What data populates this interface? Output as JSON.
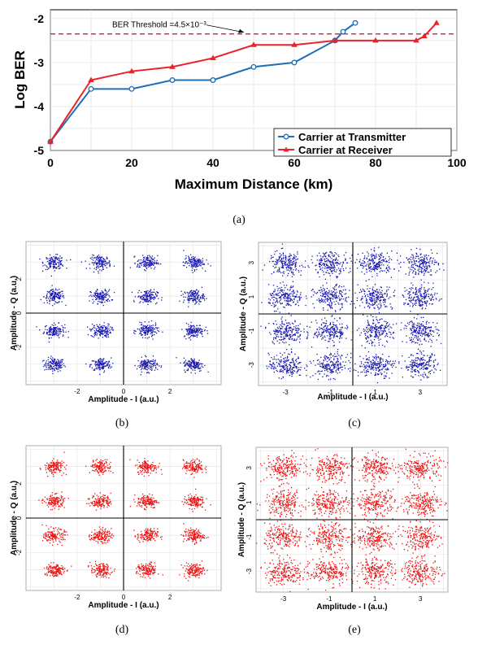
{
  "colors": {
    "transmitter": "#1f6fb5",
    "receiver": "#e8242a",
    "constellation_blue": "#1a1ab0",
    "constellation_red": "#ee1111"
  },
  "chart_data": [
    {
      "type": "line",
      "panel": "(a)",
      "xlabel": "Maximum Distance (km)",
      "ylabel": "Log BER",
      "xlim": [
        0,
        100
      ],
      "ylim": [
        -5,
        -1.8
      ],
      "xticks": [
        "0",
        "20",
        "40",
        "60",
        "80",
        "100"
      ],
      "yticks": [
        "-2",
        "-3",
        "-4",
        "-5"
      ],
      "threshold": {
        "value": -2.35,
        "label": "BER Threshold =4.5×10⁻³"
      },
      "legend_position": "bottom-right",
      "series": [
        {
          "name": "Carrier at Transmitter",
          "color": "#1f6fb5",
          "marker": "circle",
          "x": [
            0,
            10,
            20,
            30,
            40,
            50,
            60,
            70,
            72,
            75
          ],
          "y": [
            -4.8,
            -3.6,
            -3.6,
            -3.4,
            -3.4,
            -3.1,
            -3.0,
            -2.5,
            -2.3,
            -2.1
          ]
        },
        {
          "name": "Carrier at Receiver",
          "color": "#e8242a",
          "marker": "triangle",
          "x": [
            0,
            10,
            20,
            30,
            40,
            50,
            60,
            70,
            80,
            90,
            92,
            95
          ],
          "y": [
            -4.8,
            -3.4,
            -3.2,
            -3.1,
            -2.9,
            -2.6,
            -2.6,
            -2.5,
            -2.5,
            -2.5,
            -2.4,
            -2.1
          ]
        }
      ]
    },
    {
      "type": "scatter",
      "panel": "(b)",
      "modulation_grid": 4,
      "xlabel": "Amplitude - I (a.u.)",
      "ylabel": "Amplitude - Q (a.u.)",
      "xticks": [
        "-2",
        "0",
        "2"
      ],
      "yticks": [
        "2",
        "0",
        "-2"
      ],
      "centers": [
        -3,
        -1,
        1,
        3
      ],
      "noise": 0.22,
      "color": "#1a1ab0"
    },
    {
      "type": "scatter",
      "panel": "(c)",
      "modulation_grid": 4,
      "xlabel": "Amplitude - I (a.u.)",
      "ylabel": "Amplitude - Q (a.u.)",
      "xticks": [
        "-3",
        "-1",
        "1",
        "3"
      ],
      "yticks": [
        "3",
        "1",
        "-1",
        "-3"
      ],
      "centers": [
        -3,
        -1,
        1,
        3
      ],
      "noise": 0.38,
      "color": "#1a1ab0"
    },
    {
      "type": "scatter",
      "panel": "(d)",
      "modulation_grid": 4,
      "xlabel": "Amplitude - I (a.u.)",
      "ylabel": "Amplitude - Q (a.u.)",
      "xticks": [
        "-2",
        "0",
        "2"
      ],
      "yticks": [
        "2",
        "0",
        "-2"
      ],
      "centers": [
        -3,
        -1,
        1,
        3
      ],
      "noise": 0.22,
      "color": "#ee1111"
    },
    {
      "type": "scatter",
      "panel": "(e)",
      "modulation_grid": 4,
      "xlabel": "Amplitude - I (a.u.)",
      "ylabel": "Amplitude - Q (a.u.)",
      "xticks": [
        "-3",
        "-1",
        "1",
        "3"
      ],
      "yticks": [
        "3",
        "1",
        "-1",
        "-3"
      ],
      "centers": [
        -3,
        -1,
        1,
        3
      ],
      "noise": 0.42,
      "color": "#ee1111"
    }
  ]
}
